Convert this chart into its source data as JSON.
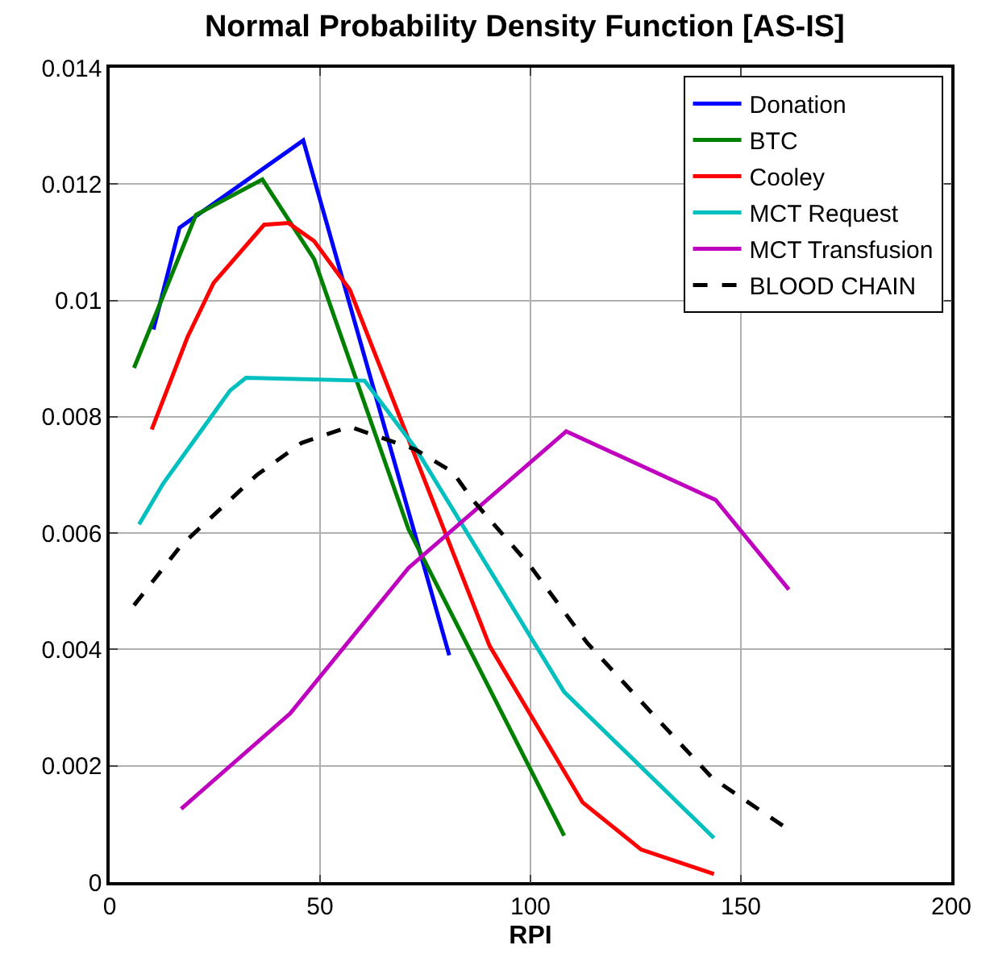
{
  "chart_data": {
    "type": "line",
    "title": "Normal Probability Density Function [AS-IS]",
    "xlabel": "RPI",
    "xlim": [
      0,
      200
    ],
    "xticks": [
      0,
      50,
      100,
      150,
      200
    ],
    "ylim": [
      0,
      0.014
    ],
    "yticks": [
      0,
      0.002,
      0.004,
      0.006,
      0.008,
      0.01,
      0.012,
      0.014
    ],
    "grid": true,
    "legend": "top right",
    "marker": "none",
    "series": [
      {
        "name": "Donation",
        "color": "#0000ff",
        "line_style": "solid",
        "x": [
          10.4,
          16.6,
          46,
          80.7
        ],
        "values": [
          0.0095,
          0.01125,
          0.01275,
          0.0039
        ]
      },
      {
        "name": "BTC",
        "color": "#008000",
        "line_style": "solid",
        "x": [
          5.8,
          20.5,
          36.3,
          48.6,
          71,
          108
        ],
        "values": [
          0.00884,
          0.01147,
          0.01208,
          0.01071,
          0.00607,
          0.0008
        ]
      },
      {
        "name": "Cooley",
        "color": "#ff0000",
        "line_style": "solid",
        "x": [
          10,
          18.5,
          24.7,
          36.7,
          42.5,
          48.6,
          57.1,
          90.3,
          112.4,
          126.3,
          143.6
        ],
        "values": [
          0.00778,
          0.00937,
          0.0103,
          0.0113,
          0.01133,
          0.01102,
          0.01018,
          0.00406,
          0.00137,
          0.00056,
          0.00014
        ]
      },
      {
        "name": "MCT Request",
        "color": "#00bfbf",
        "line_style": "solid",
        "x": [
          7,
          12.7,
          28.6,
          32.4,
          60.6,
          72.6,
          108,
          143.6
        ],
        "values": [
          0.00615,
          0.00685,
          0.00845,
          0.00867,
          0.00862,
          0.00747,
          0.00327,
          0.00076
        ]
      },
      {
        "name": "MCT Transfusion",
        "color": "#bf00bf",
        "line_style": "solid",
        "x": [
          17,
          42.9,
          71,
          108.5,
          144,
          161.4
        ],
        "values": [
          0.00126,
          0.0029,
          0.0054,
          0.00775,
          0.00657,
          0.00503
        ]
      },
      {
        "name": "BLOOD CHAIN",
        "color": "#000000",
        "line_style": "dashed",
        "x": [
          5.8,
          17,
          35,
          45.6,
          57,
          72.6,
          81.5,
          86.5,
          100,
          113.5,
          126.6,
          143.2,
          161.4
        ],
        "values": [
          0.00476,
          0.00579,
          0.007,
          0.00755,
          0.00783,
          0.00744,
          0.00705,
          0.00655,
          0.00543,
          0.00411,
          0.00308,
          0.00179,
          0.0009
        ]
      }
    ]
  }
}
